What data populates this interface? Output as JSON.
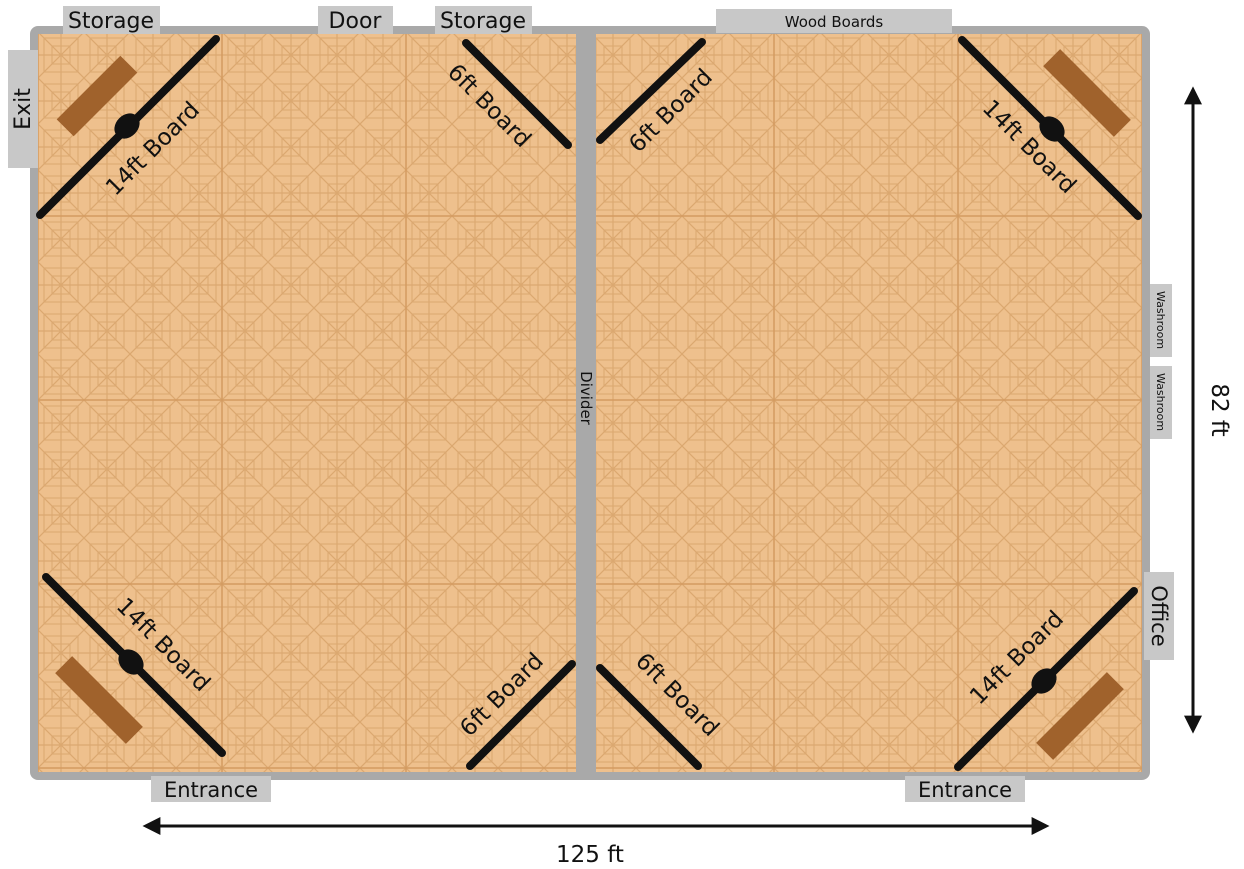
{
  "colors": {
    "floor": "#eec08d",
    "floor_grid": "#d9a46b",
    "wall": "#a9a9a9",
    "tag_bg": "#c8c8c8",
    "board": "#111111",
    "wood": "#a0622c"
  },
  "labels": {
    "storage_left": "Storage",
    "door": "Door",
    "storage_right": "Storage",
    "wood_boards": "Wood Boards",
    "exit": "Exit",
    "divider": "Divider",
    "washroom_1": "Washroom",
    "washroom_2": "Washroom",
    "office": "Office",
    "entrance_left": "Entrance",
    "entrance_right": "Entrance"
  },
  "boards": {
    "tl_14ft": "14ft Board",
    "tr_14ft": "14ft Board",
    "bl_14ft": "14ft Board",
    "br_14ft": "14ft Board",
    "tl_6ft": "6ft Board",
    "tr_6ft": "6ft Board",
    "bl_6ft": "6ft Board",
    "br_6ft": "6ft Board"
  },
  "dimensions": {
    "width": "125 ft",
    "height": "82 ft"
  }
}
